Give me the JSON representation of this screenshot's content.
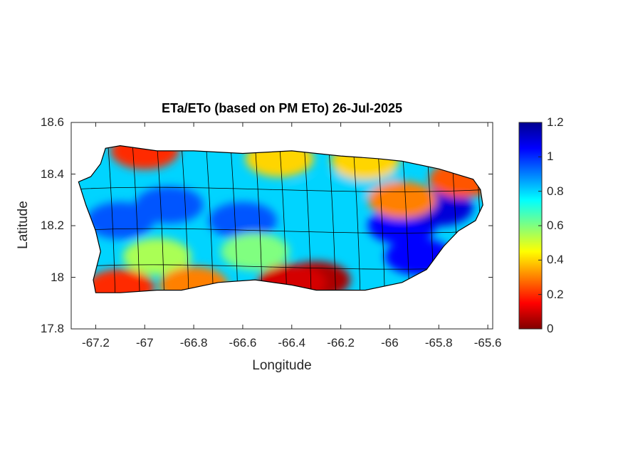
{
  "figure": {
    "title": "ETa/ETo (based on PM ETo) 26-Jul-2025",
    "xlabel": "Longitude",
    "ylabel": "Latitude"
  },
  "axes": {
    "xlim": [
      -67.3,
      -65.58
    ],
    "ylim": [
      17.8,
      18.6
    ],
    "xticks": [
      {
        "value": -67.2,
        "label": "-67.2"
      },
      {
        "value": -67.0,
        "label": "-67"
      },
      {
        "value": -66.8,
        "label": "-66.8"
      },
      {
        "value": -66.6,
        "label": "-66.6"
      },
      {
        "value": -66.4,
        "label": "-66.4"
      },
      {
        "value": -66.2,
        "label": "-66.2"
      },
      {
        "value": -66.0,
        "label": "-66"
      },
      {
        "value": -65.8,
        "label": "-65.8"
      },
      {
        "value": -65.6,
        "label": "-65.6"
      }
    ],
    "yticks": [
      {
        "value": 17.8,
        "label": "17.8"
      },
      {
        "value": 18.0,
        "label": "18"
      },
      {
        "value": 18.2,
        "label": "18.2"
      },
      {
        "value": 18.4,
        "label": "18.4"
      },
      {
        "value": 18.6,
        "label": "18.6"
      }
    ]
  },
  "colorbar": {
    "colormap": "jet",
    "range": [
      0,
      1.2
    ],
    "ticks": [
      {
        "value": 0,
        "label": "0"
      },
      {
        "value": 0.2,
        "label": "0.2"
      },
      {
        "value": 0.4,
        "label": "0.4"
      },
      {
        "value": 0.6,
        "label": "0.6"
      },
      {
        "value": 0.8,
        "label": "0.8"
      },
      {
        "value": 1.0,
        "label": "1"
      },
      {
        "value": 1.2,
        "label": "1.2"
      }
    ]
  },
  "map": {
    "outline": [
      [
        -67.27,
        18.37
      ],
      [
        -67.22,
        18.39
      ],
      [
        -67.18,
        18.44
      ],
      [
        -67.16,
        18.5
      ],
      [
        -67.1,
        18.51
      ],
      [
        -66.95,
        18.49
      ],
      [
        -66.8,
        18.49
      ],
      [
        -66.6,
        18.48
      ],
      [
        -66.4,
        18.49
      ],
      [
        -66.2,
        18.47
      ],
      [
        -66.05,
        18.46
      ],
      [
        -65.95,
        18.45
      ],
      [
        -65.8,
        18.42
      ],
      [
        -65.66,
        18.38
      ],
      [
        -65.63,
        18.34
      ],
      [
        -65.62,
        18.28
      ],
      [
        -65.65,
        18.22
      ],
      [
        -65.72,
        18.18
      ],
      [
        -65.78,
        18.12
      ],
      [
        -65.85,
        18.03
      ],
      [
        -65.95,
        17.98
      ],
      [
        -66.1,
        17.95
      ],
      [
        -66.2,
        17.95
      ],
      [
        -66.3,
        17.95
      ],
      [
        -66.4,
        17.97
      ],
      [
        -66.55,
        17.99
      ],
      [
        -66.7,
        17.98
      ],
      [
        -66.85,
        17.95
      ],
      [
        -66.95,
        17.95
      ],
      [
        -67.1,
        17.94
      ],
      [
        -67.2,
        17.94
      ],
      [
        -67.21,
        17.99
      ],
      [
        -67.18,
        18.1
      ],
      [
        -67.2,
        18.18
      ],
      [
        -67.24,
        18.28
      ],
      [
        -67.27,
        18.37
      ]
    ],
    "value_zones": [
      {
        "lon": -66.9,
        "lat": 18.28,
        "value": 0.95
      },
      {
        "lon": -66.6,
        "lat": 18.22,
        "value": 0.95
      },
      {
        "lon": -66.3,
        "lat": 18.3,
        "value": 0.8
      },
      {
        "lon": -66.1,
        "lat": 18.38,
        "value": 0.8
      },
      {
        "lon": -65.95,
        "lat": 18.2,
        "value": 1.05
      },
      {
        "lon": -65.88,
        "lat": 18.08,
        "value": 1.05
      },
      {
        "lon": -65.8,
        "lat": 18.27,
        "value": 1.1
      },
      {
        "lon": -67.1,
        "lat": 18.22,
        "value": 0.95
      },
      {
        "lon": -66.95,
        "lat": 18.08,
        "value": 0.55
      },
      {
        "lon": -66.55,
        "lat": 18.1,
        "value": 0.6
      },
      {
        "lon": -66.3,
        "lat": 17.99,
        "value": 0.05
      },
      {
        "lon": -66.4,
        "lat": 17.98,
        "value": 0.1
      },
      {
        "lon": -67.1,
        "lat": 17.96,
        "value": 0.2
      },
      {
        "lon": -66.8,
        "lat": 17.97,
        "value": 0.3
      },
      {
        "lon": -67.0,
        "lat": 18.49,
        "value": 0.2
      },
      {
        "lon": -66.45,
        "lat": 18.46,
        "value": 0.4
      },
      {
        "lon": -66.1,
        "lat": 18.45,
        "value": 0.4
      },
      {
        "lon": -65.7,
        "lat": 18.38,
        "value": 0.25
      },
      {
        "lon": -65.95,
        "lat": 18.3,
        "value": 0.3
      }
    ]
  }
}
